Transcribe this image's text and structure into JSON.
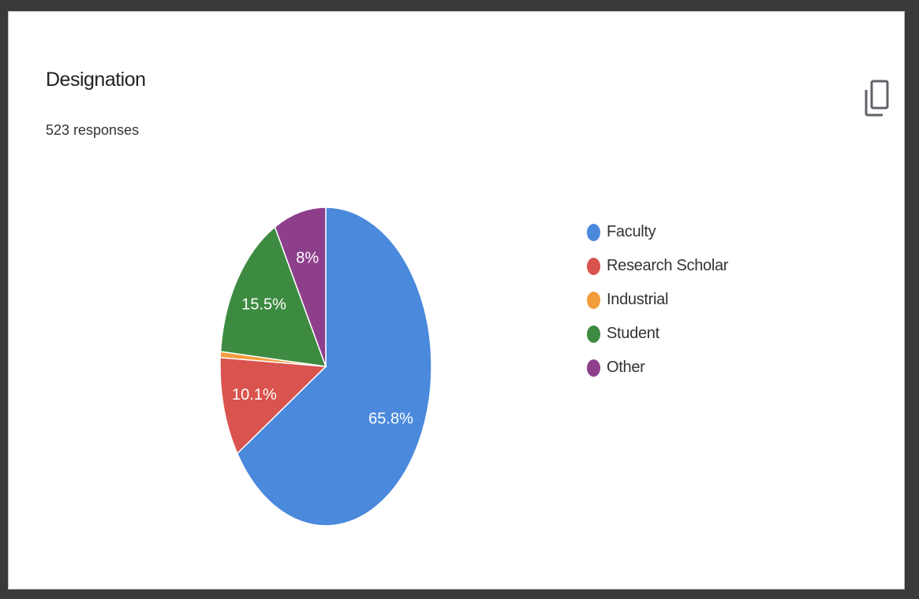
{
  "header": {
    "title": "Designation",
    "responses": "523 responses"
  },
  "icons": {
    "copy": "copy-icon"
  },
  "colors": {
    "faculty": "#4a89dc",
    "research_scholar": "#d9534f",
    "industrial": "#f39c3c",
    "student": "#3d8b40",
    "other": "#8e3f8c"
  },
  "chart_data": {
    "type": "pie",
    "total_responses": 523,
    "categories": [
      "Faculty",
      "Research Scholar",
      "Industrial",
      "Student",
      "Other"
    ],
    "values": [
      65.8,
      10.1,
      0.6,
      15.5,
      8
    ],
    "data_labels": [
      "65.8%",
      "10.1%",
      "",
      "15.5%",
      "8%"
    ],
    "colors": [
      "#4a89dc",
      "#d9534f",
      "#f39c3c",
      "#3d8b40",
      "#8e3f8c"
    ],
    "title": "Designation",
    "subtitle": "523 responses",
    "legend_position": "right"
  }
}
